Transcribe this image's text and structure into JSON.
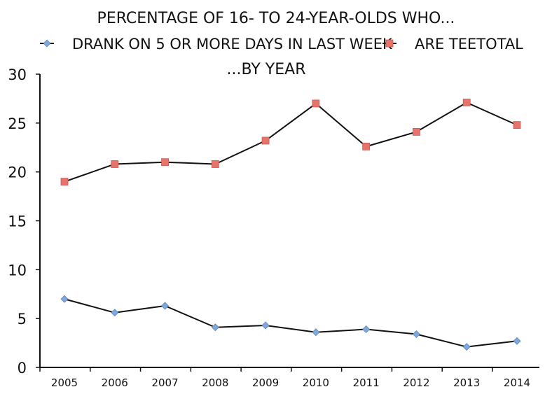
{
  "chart_data": {
    "type": "line",
    "title_lines": [
      "PERCENTAGE OF 16- TO 24-YEAR-OLDS WHO...",
      "...BY YEAR"
    ],
    "categories": [
      "2005",
      "2006",
      "2007",
      "2008",
      "2009",
      "2010",
      "2011",
      "2012",
      "2013",
      "2014"
    ],
    "series": [
      {
        "name": "DRANK ON 5 OR MORE DAYS IN LAST WEEK",
        "marker": "diamond",
        "marker_color": "#7fa8dc",
        "values": [
          7.0,
          5.6,
          6.3,
          4.1,
          4.3,
          3.6,
          3.9,
          3.4,
          2.1,
          2.7
        ]
      },
      {
        "name": "ARE TEETOTAL",
        "marker": "square",
        "marker_color": "#e8736b",
        "values": [
          19.0,
          20.8,
          21.0,
          20.8,
          23.2,
          27.0,
          22.6,
          24.1,
          27.1,
          24.8
        ]
      }
    ],
    "yticks": [
      "0",
      "5",
      "10",
      "15",
      "20",
      "25",
      "30"
    ],
    "ylim": [
      0,
      30
    ],
    "grid": false,
    "legend_position": "top"
  }
}
